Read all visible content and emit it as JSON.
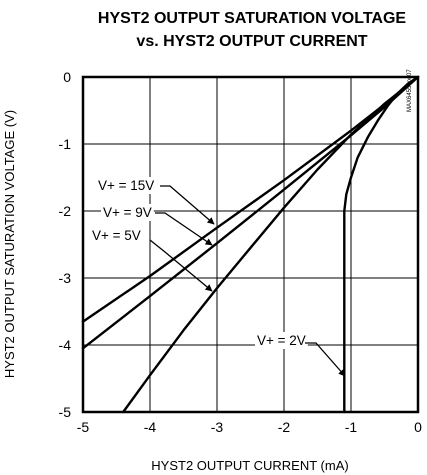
{
  "chart_data": {
    "type": "line",
    "title": "HYST2 OUTPUT SATURATION VOLTAGE",
    "subtitle": "vs. HYST2 OUTPUT CURRENT",
    "xlabel": "HYST2 OUTPUT CURRENT (mA)",
    "ylabel": "HYST2 OUTPUT SATURATION VOLTAGE (V)",
    "xlim": [
      -5,
      0
    ],
    "ylim": [
      -5,
      0
    ],
    "xticks": [
      "-5",
      "-4",
      "-3",
      "-2",
      "-1",
      "0"
    ],
    "yticks": [
      "0",
      "-1",
      "-2",
      "-3",
      "-4",
      "-5"
    ],
    "grid": true,
    "side_code": "MAX6455 toc07",
    "series": [
      {
        "name": "V+ = 15V",
        "x": [
          -5.0,
          -4.0,
          -3.0,
          -2.0,
          -1.0,
          -0.5,
          0.0
        ],
        "y": [
          -3.65,
          -2.97,
          -2.25,
          -1.54,
          -0.8,
          -0.41,
          0.0
        ]
      },
      {
        "name": "V+ = 9V",
        "x": [
          -5.0,
          -4.0,
          -3.0,
          -2.0,
          -1.0,
          -0.5,
          0.0
        ],
        "y": [
          -4.05,
          -3.27,
          -2.48,
          -1.68,
          -0.87,
          -0.45,
          0.0
        ]
      },
      {
        "name": "V+ = 5V",
        "x": [
          -4.4,
          -4.0,
          -3.5,
          -3.0,
          -2.5,
          -2.0,
          -1.5,
          -1.0,
          -0.5,
          0.0
        ],
        "y": [
          -5.0,
          -4.45,
          -3.78,
          -3.15,
          -2.55,
          -1.95,
          -1.38,
          -0.86,
          -0.4,
          0.0
        ]
      },
      {
        "name": "V+ = 2V",
        "x": [
          -1.1,
          -1.1,
          -1.07,
          -1.0,
          -0.9,
          -0.75,
          -0.6,
          -0.45,
          -0.3,
          -0.15,
          0.0
        ],
        "y": [
          -5.0,
          -2.0,
          -1.75,
          -1.5,
          -1.2,
          -0.9,
          -0.65,
          -0.43,
          -0.24,
          -0.1,
          0.0
        ]
      }
    ],
    "annotations": [
      {
        "text": "V+ = 15V",
        "target": "V+ = 15V"
      },
      {
        "text": "V+ = 9V",
        "target": "V+ = 9V"
      },
      {
        "text": "V+ = 5V",
        "target": "V+ = 5V"
      },
      {
        "text": "V+ = 2V",
        "target": "V+ = 2V"
      }
    ]
  }
}
